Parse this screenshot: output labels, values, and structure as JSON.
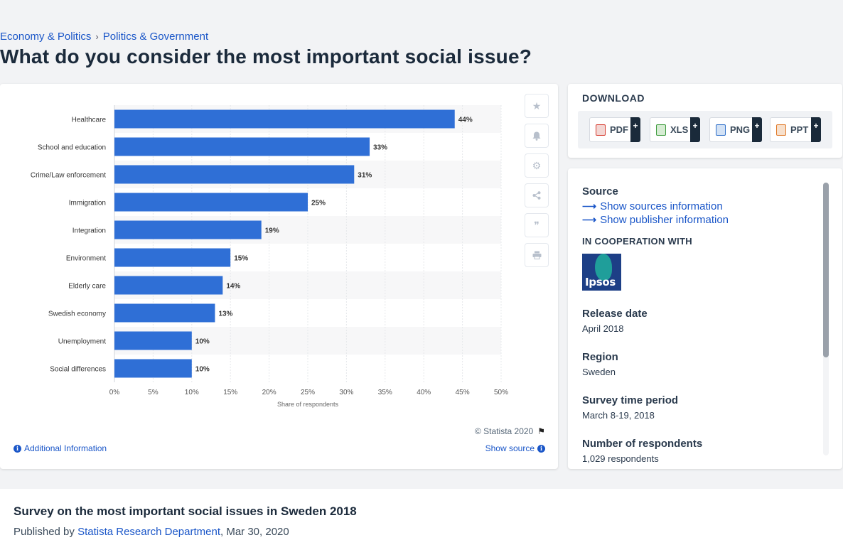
{
  "breadcrumb": [
    "Economy & Politics",
    "Politics & Government"
  ],
  "breadcrumb_sep": "›",
  "title": "What do you consider the most important social issue?",
  "chart_card": {
    "copyright": "© Statista 2020",
    "additional_info": "Additional Information",
    "show_source": "Show source"
  },
  "download": {
    "title": "DOWNLOAD",
    "buttons": [
      {
        "label": "PDF",
        "color": "#d63b2f"
      },
      {
        "label": "XLS",
        "color": "#3c9a3c"
      },
      {
        "label": "PNG",
        "color": "#2f6fc9"
      },
      {
        "label": "PPT",
        "color": "#e07a2a"
      }
    ],
    "plus": "+"
  },
  "meta": {
    "source_label": "Source",
    "show_sources": "Show sources information",
    "show_publisher": "Show publisher information",
    "cooperation": "IN COOPERATION WITH",
    "logo_text": "Ipsos",
    "release_label": "Release date",
    "release_value": "April 2018",
    "region_label": "Region",
    "region_value": "Sweden",
    "survey_label": "Survey time period",
    "survey_value": "March 8-19, 2018",
    "respondents_label": "Number of respondents",
    "respondents_value": "1,029 respondents"
  },
  "bottom": {
    "title": "Survey on the most important social issues in Sweden 2018",
    "published_prefix": "Published by ",
    "publisher": "Statista Research Department",
    "published_date": ", Mar 30, 2020"
  },
  "chart_data": {
    "type": "bar",
    "orientation": "horizontal",
    "categories": [
      "Healthcare",
      "School and education",
      "Crime/Law enforcement",
      "Immigration",
      "Integration",
      "Environment",
      "Elderly care",
      "Swedish economy",
      "Unemployment",
      "Social differences"
    ],
    "values": [
      44,
      33,
      31,
      25,
      19,
      15,
      14,
      13,
      10,
      10
    ],
    "data_labels": [
      "44%",
      "33%",
      "31%",
      "25%",
      "19%",
      "15%",
      "14%",
      "13%",
      "10%",
      "10%"
    ],
    "xlabel": "Share of respondents",
    "xlim": [
      0,
      50
    ],
    "xticks": [
      0,
      5,
      10,
      15,
      20,
      25,
      30,
      35,
      40,
      45,
      50
    ],
    "xtick_labels": [
      "0%",
      "5%",
      "10%",
      "15%",
      "20%",
      "25%",
      "30%",
      "35%",
      "40%",
      "45%",
      "50%"
    ],
    "bar_color": "#2f6fd6",
    "grid": true,
    "legend": "none"
  }
}
